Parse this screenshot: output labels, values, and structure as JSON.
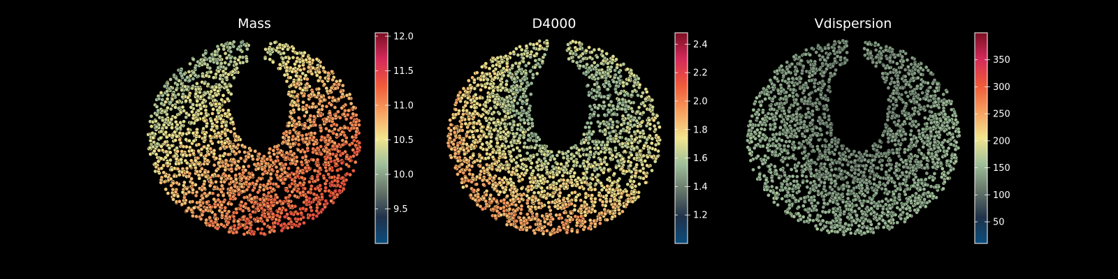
{
  "colormap": {
    "name": "Spectral_r",
    "stops": [
      "#0b4d7d",
      "#20324a",
      "#66756a",
      "#9fbf9a",
      "#f2e58e",
      "#f7a060",
      "#ef5a3a",
      "#d42a5b",
      "#7a0f22"
    ]
  },
  "chart_data": [
    {
      "type": "scatter",
      "title": "Mass",
      "colorbar": {
        "range": [
          9.0,
          12.05
        ],
        "ticks": [
          9.5,
          10.0,
          10.5,
          11.0,
          11.5,
          12.0
        ],
        "tick_labels": [
          "9.5",
          "10.0",
          "10.5",
          "11.0",
          "11.5",
          "12.0"
        ]
      },
      "value_trend": {
        "gradient_direction": "low toward upper-left, high toward lower-right",
        "low_value": 10.0,
        "high_value": 11.5
      }
    },
    {
      "type": "scatter",
      "title": "D4000",
      "colorbar": {
        "range": [
          1.0,
          2.48
        ],
        "ticks": [
          1.2,
          1.4,
          1.6,
          1.8,
          2.0,
          2.2,
          2.4
        ],
        "tick_labels": [
          "1.2",
          "1.4",
          "1.6",
          "1.8",
          "2.0",
          "2.2",
          "2.4"
        ]
      },
      "value_trend": {
        "gradient_direction": "low near the inner hole and upper-right lobe, high on outer left and bottom rim",
        "low_value": 1.3,
        "high_value": 2.0
      }
    },
    {
      "type": "scatter",
      "title": "Vdispersion",
      "colorbar": {
        "range": [
          10,
          400
        ],
        "ticks": [
          50,
          100,
          150,
          200,
          250,
          300,
          350
        ],
        "tick_labels": [
          "50",
          "100",
          "150",
          "200",
          "250",
          "300",
          "350"
        ]
      },
      "value_trend": {
        "gradient_direction": "low near the top and inner hole, moderate elsewhere, high near the outer rim",
        "low_value": 90,
        "high_value": 190
      }
    }
  ]
}
